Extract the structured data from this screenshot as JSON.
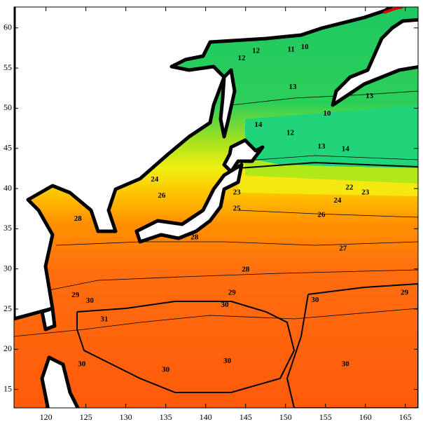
{
  "chart_data": {
    "type": "contour",
    "xlim": [
      116,
      166.6
    ],
    "ylim": [
      12.7,
      62.6
    ],
    "xticks": [
      120,
      125,
      130,
      135,
      140,
      145,
      150,
      155,
      160,
      165
    ],
    "yticks": [
      15,
      20,
      25,
      30,
      35,
      40,
      45,
      50,
      55,
      60
    ],
    "contour_labels": [
      {
        "x": 152.4,
        "y": 57.6,
        "value": 10
      },
      {
        "x": 150.7,
        "y": 57.3,
        "value": 11
      },
      {
        "x": 146.3,
        "y": 57.1,
        "value": 12
      },
      {
        "x": 144.5,
        "y": 56.2,
        "value": 12
      },
      {
        "x": 150.9,
        "y": 52.6,
        "value": 13
      },
      {
        "x": 160.5,
        "y": 51.5,
        "value": 13
      },
      {
        "x": 155.2,
        "y": 49.3,
        "value": 10
      },
      {
        "x": 150.6,
        "y": 46.9,
        "value": 12
      },
      {
        "x": 154.5,
        "y": 45.2,
        "value": 13
      },
      {
        "x": 157.5,
        "y": 44.9,
        "value": 14
      },
      {
        "x": 146.6,
        "y": 47.9,
        "value": 14
      },
      {
        "x": 158.0,
        "y": 40.1,
        "value": 22
      },
      {
        "x": 160.0,
        "y": 39.5,
        "value": 23
      },
      {
        "x": 143.9,
        "y": 39.5,
        "value": 23
      },
      {
        "x": 133.6,
        "y": 41.1,
        "value": 24
      },
      {
        "x": 134.5,
        "y": 39.1,
        "value": 26
      },
      {
        "x": 154.5,
        "y": 36.7,
        "value": 26
      },
      {
        "x": 156.5,
        "y": 38.5,
        "value": 24
      },
      {
        "x": 143.9,
        "y": 37.5,
        "value": 25
      },
      {
        "x": 124.0,
        "y": 36.2,
        "value": 28
      },
      {
        "x": 138.6,
        "y": 33.9,
        "value": 28
      },
      {
        "x": 157.2,
        "y": 32.5,
        "value": 27
      },
      {
        "x": 145.0,
        "y": 29.9,
        "value": 28
      },
      {
        "x": 143.3,
        "y": 27.0,
        "value": 29
      },
      {
        "x": 123.7,
        "y": 26.7,
        "value": 29
      },
      {
        "x": 125.5,
        "y": 26.0,
        "value": 30
      },
      {
        "x": 127.3,
        "y": 23.7,
        "value": 31
      },
      {
        "x": 142.4,
        "y": 25.5,
        "value": 30
      },
      {
        "x": 153.7,
        "y": 26.1,
        "value": 30
      },
      {
        "x": 135.0,
        "y": 17.4,
        "value": 30
      },
      {
        "x": 142.7,
        "y": 18.5,
        "value": 30
      },
      {
        "x": 157.5,
        "y": 18.1,
        "value": 30
      },
      {
        "x": 124.5,
        "y": 18.1,
        "value": 30
      },
      {
        "x": 164.9,
        "y": 27.0,
        "value": 29
      }
    ]
  }
}
